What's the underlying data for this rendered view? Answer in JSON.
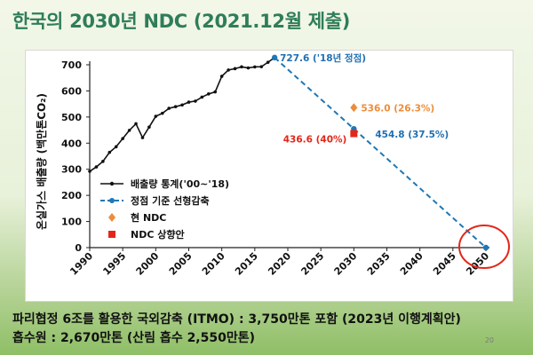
{
  "slide": {
    "title": "한국의 2030년 NDC (2021.12월 제출)",
    "footnotes": [
      "파리협정 6조를 활용한 국외감축 (ITMO) : 3,750만톤 포함 (2023년 이행계획안)",
      "흡수원 : 2,670만톤 (산림 흡수 2,550만톤)"
    ],
    "page_number": "20"
  },
  "chart_data": {
    "type": "line",
    "title": "",
    "xlabel": "",
    "ylabel": "온실가스 배출량 (백만톤CO₂)",
    "xlim": [
      1990,
      2050
    ],
    "ylim": [
      0,
      700
    ],
    "xticks": [
      1990,
      1995,
      2000,
      2005,
      2010,
      2015,
      2020,
      2025,
      2030,
      2035,
      2040,
      2045,
      2050
    ],
    "yticks": [
      0,
      100,
      200,
      300,
      400,
      500,
      600,
      700
    ],
    "grid": false,
    "legend_position": "bottom-left",
    "series": [
      {
        "name": "배출량 통계('00~'18)",
        "style": "solid-line-dots",
        "color": "#111111",
        "x": [
          1990,
          1991,
          1992,
          1993,
          1994,
          1995,
          1996,
          1997,
          1998,
          1999,
          2000,
          2001,
          2002,
          2003,
          2004,
          2005,
          2006,
          2007,
          2008,
          2009,
          2010,
          2011,
          2012,
          2013,
          2014,
          2015,
          2016,
          2017,
          2018
        ],
        "y": [
          292.1,
          309.0,
          330.1,
          364.8,
          386.2,
          417.5,
          449.0,
          474.2,
          420.9,
          461.5,
          502.8,
          514.2,
          533.3,
          539.6,
          546.2,
          557.0,
          561.0,
          576.3,
          588.5,
          596.2,
          656.0,
          680.0,
          685.2,
          692.1,
          688.0,
          691.9,
          692.8,
          709.7,
          727.6
        ]
      },
      {
        "name": "정점 기준 선형감축",
        "style": "dashed-line-dots",
        "color": "#1f77b4",
        "x": [
          2018,
          2030,
          2050
        ],
        "y": [
          727.6,
          454.8,
          0
        ]
      },
      {
        "name": "현 NDC",
        "style": "diamond-marker",
        "color": "#ed8c3a",
        "x": [
          2030
        ],
        "y": [
          536.0
        ]
      },
      {
        "name": "NDC 상향안",
        "style": "square-marker",
        "color": "#e32619",
        "x": [
          2030
        ],
        "y": [
          436.6
        ]
      }
    ],
    "annotations": [
      {
        "text": "727.6 ('18년 정점)",
        "x": 2018,
        "y": 727.6,
        "color": "#1f6fb2"
      },
      {
        "text": "536.0 (26.3%)",
        "x": 2030,
        "y": 536.0,
        "color": "#ed8c3a"
      },
      {
        "text": "454.8 (37.5%)",
        "x": 2030,
        "y": 454.8,
        "color": "#1f6fb2"
      },
      {
        "text": "436.6 (40%)",
        "x": 2030,
        "y": 436.6,
        "color": "#e32619"
      }
    ],
    "highlight": {
      "shape": "circle",
      "x": 2050,
      "y": 0,
      "color": "#e32619"
    }
  }
}
